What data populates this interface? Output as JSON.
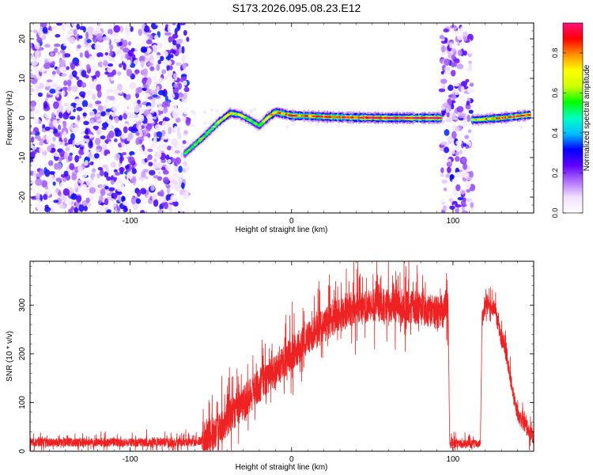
{
  "title": "S173.2026.095.08.23.E12",
  "chart_data": [
    {
      "type": "heatmap",
      "xlabel": "Height of straight line (km)",
      "ylabel": "Frequency (Hz)",
      "xlim": [
        -162,
        150
      ],
      "ylim": [
        -24,
        24
      ],
      "xticks": [
        -100,
        0,
        100
      ],
      "yticks": [
        -20,
        -10,
        0,
        10,
        20
      ],
      "colorbar": {
        "label": "Normalized spectral amplitude",
        "range": [
          0,
          0.95
        ],
        "ticks": [
          0.0,
          0.2,
          0.4,
          0.6,
          0.8
        ],
        "colors": [
          "#ffffff",
          "#f0e0ff",
          "#b070ff",
          "#6000ff",
          "#0000ff",
          "#00bfff",
          "#00ffc0",
          "#00ff00",
          "#d0ff00",
          "#ffff00",
          "#ff9000",
          "#ff0000",
          "#ff1080"
        ]
      },
      "ridge": {
        "x": [
          -66,
          -55,
          -45,
          -38,
          -32,
          -26,
          -20,
          -15,
          -10,
          0,
          10,
          20,
          40,
          60,
          80,
          92,
          114,
          130,
          148
        ],
        "y": [
          -9,
          -5,
          -1,
          1.2,
          0.8,
          -0.5,
          -2,
          0,
          1.5,
          0.6,
          0.5,
          0.3,
          0.1,
          0,
          0,
          0,
          -0.5,
          0,
          0.8
        ],
        "amplitude": [
          0.5,
          0.55,
          0.6,
          0.75,
          0.65,
          0.6,
          0.55,
          0.7,
          0.8,
          0.9,
          0.85,
          0.9,
          0.9,
          0.95,
          0.95,
          0.95,
          0.7,
          0.85,
          0.9
        ]
      },
      "noise_regions": [
        {
          "x": [
            -162,
            -64
          ],
          "density": "high"
        },
        {
          "x": [
            93,
            112
          ],
          "density": "high"
        }
      ]
    },
    {
      "type": "line",
      "xlabel": "Height of straight line (km)",
      "ylabel": "SNR (10 * v/v)",
      "xlim": [
        -162,
        150
      ],
      "ylim": [
        0,
        390
      ],
      "xticks": [
        -100,
        0,
        100
      ],
      "yticks": [
        0,
        100,
        200,
        300
      ],
      "color": "#ee2222",
      "envelope": {
        "x": [
          -162,
          -60,
          -50,
          -40,
          -30,
          -20,
          -10,
          0,
          10,
          20,
          30,
          40,
          50,
          60,
          70,
          80,
          90,
          97,
          98,
          117,
          118,
          121,
          126,
          130,
          133,
          136,
          140,
          143,
          146,
          150
        ],
        "y": [
          18,
          18,
          30,
          65,
          100,
          135,
          165,
          200,
          230,
          258,
          280,
          292,
          300,
          300,
          298,
          292,
          285,
          290,
          15,
          15,
          270,
          310,
          290,
          230,
          200,
          140,
          75,
          60,
          48,
          30
        ]
      },
      "noise_amplitude": [
        {
          "x": [
            -162,
            -55
          ],
          "amp": 14
        },
        {
          "x": [
            -55,
            97
          ],
          "amp": 58
        },
        {
          "x": [
            98,
            117
          ],
          "amp": 14
        },
        {
          "x": [
            118,
            150
          ],
          "amp": 28
        }
      ]
    }
  ]
}
